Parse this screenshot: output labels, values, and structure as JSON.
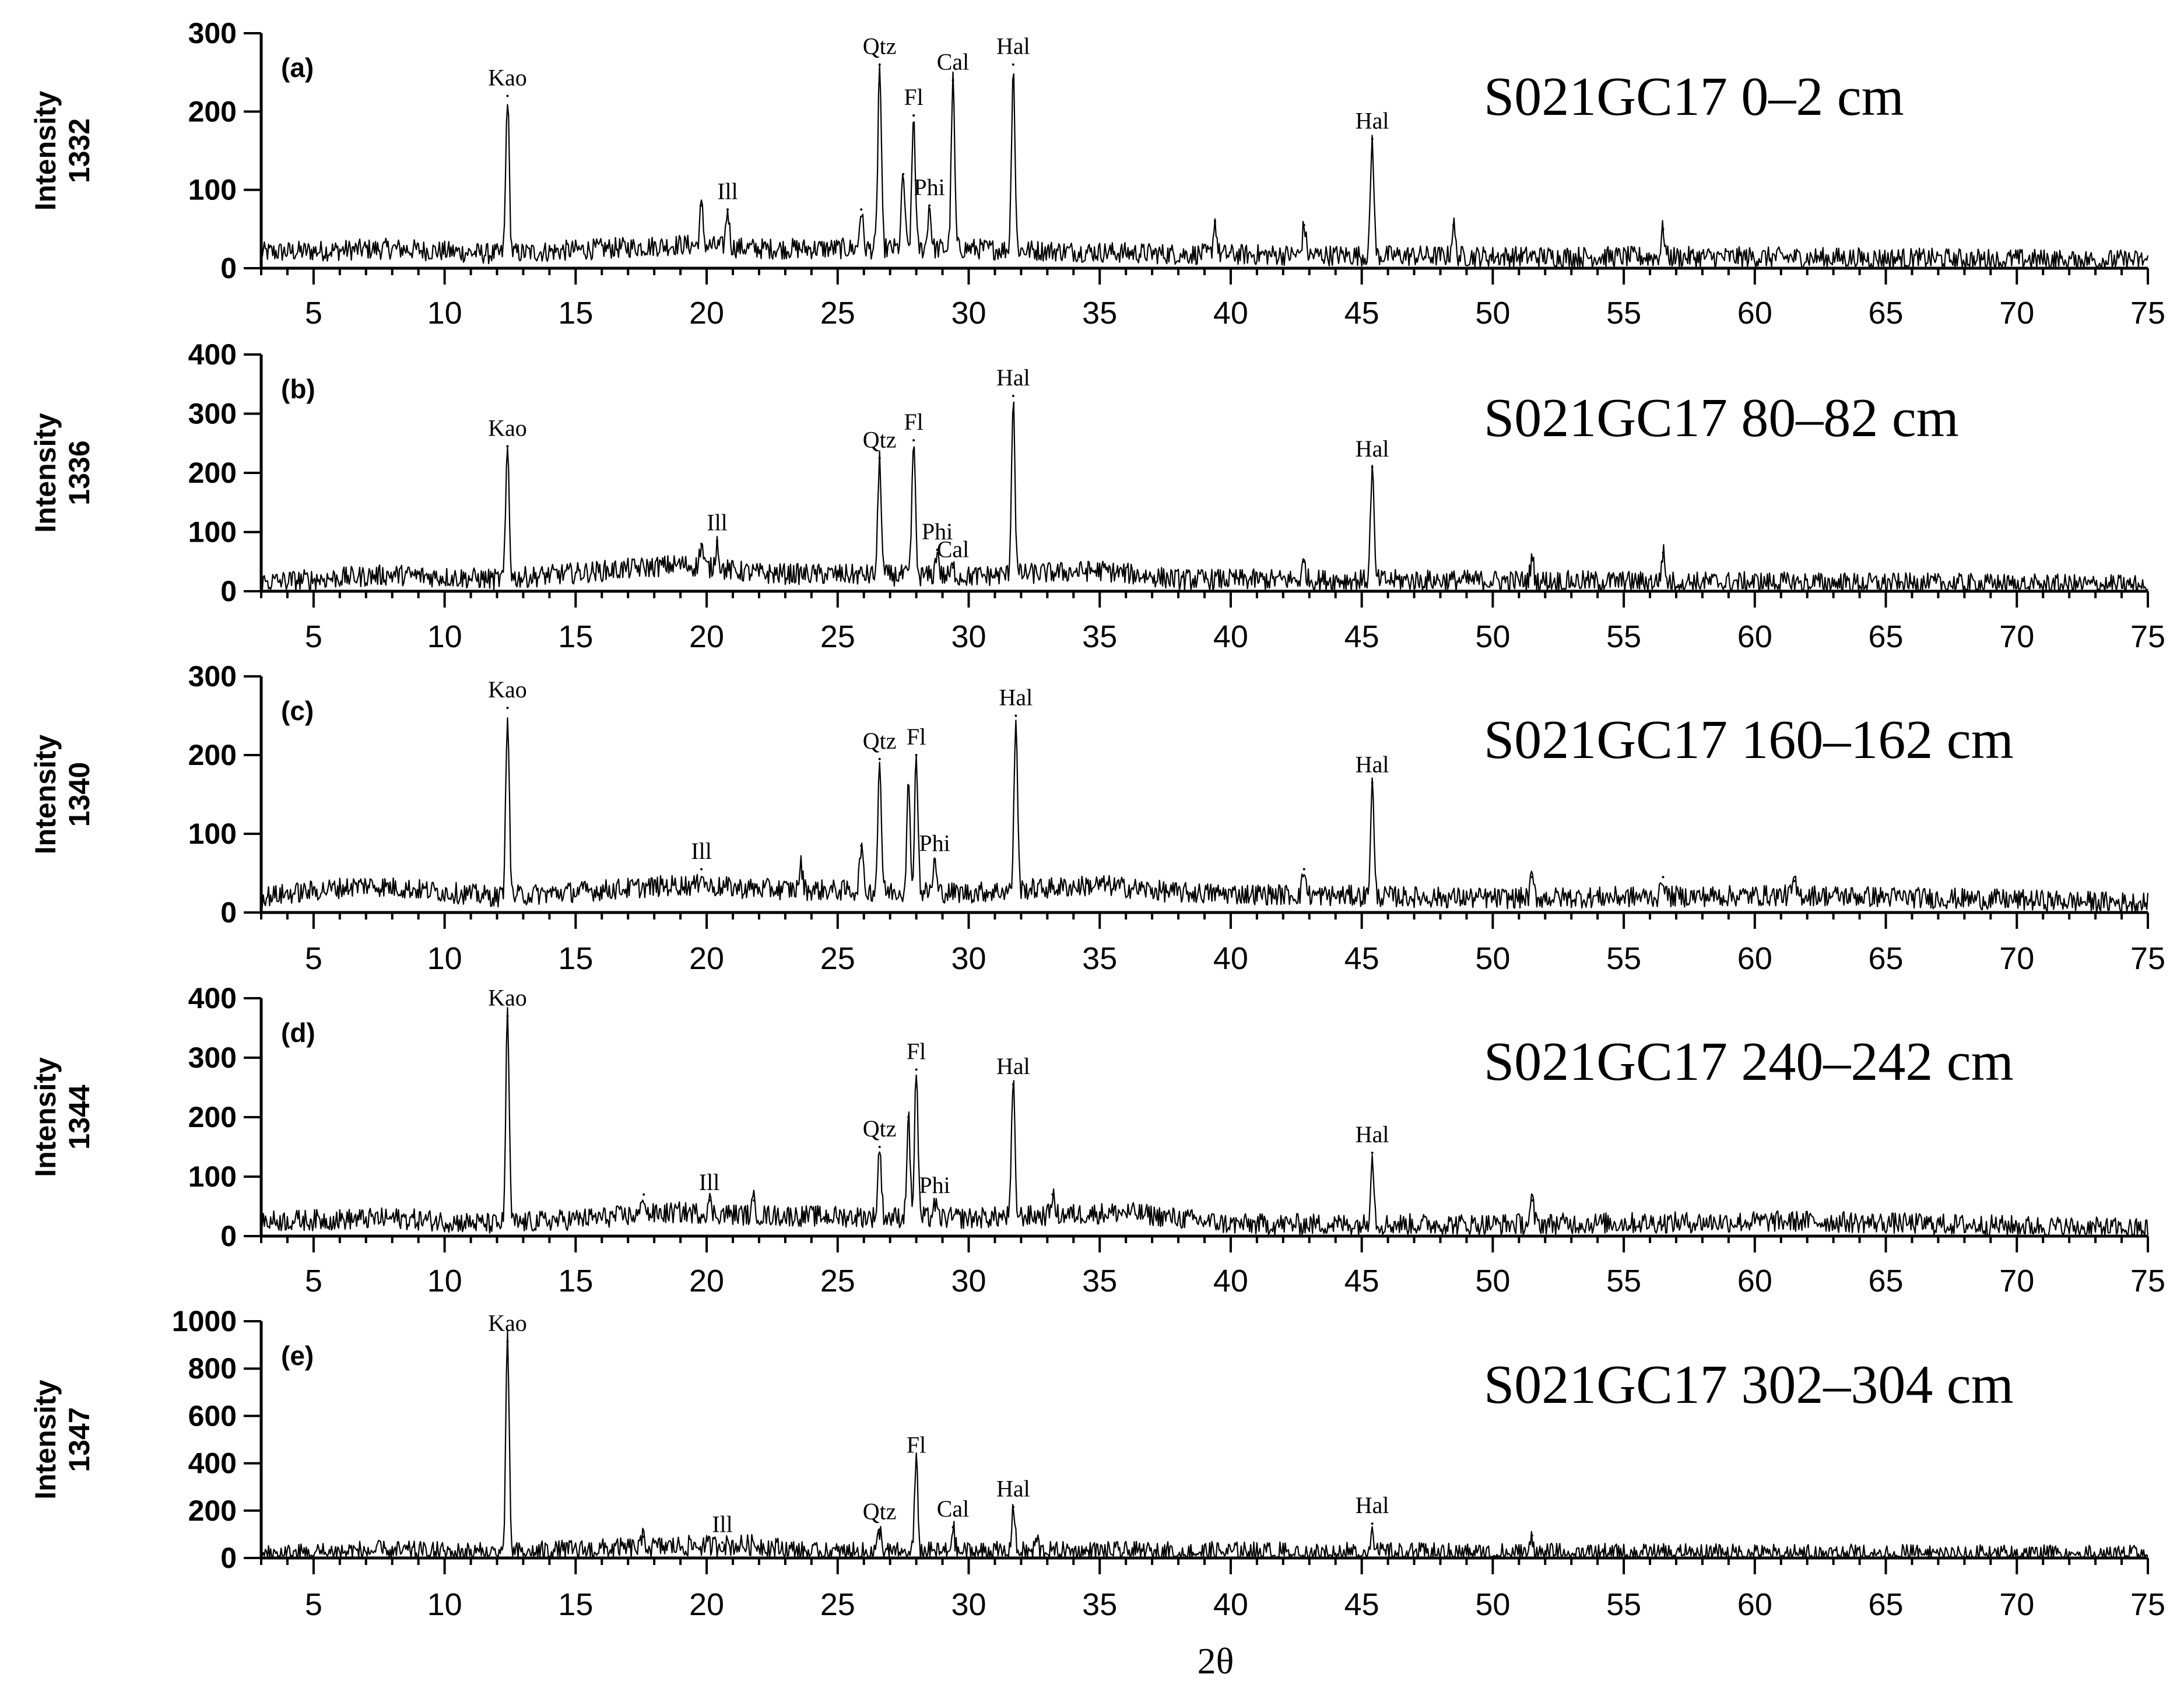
{
  "figure": {
    "x_axis_label": "2θ"
  },
  "chart_data": [
    {
      "type": "line",
      "panel_label": "(a)",
      "sample": "S021GC17   0–2 cm",
      "ylabel": [
        "Intensity",
        "1332"
      ],
      "xlim": [
        3,
        75
      ],
      "ylim": [
        0,
        300
      ],
      "yticks": [
        0,
        100,
        200,
        300
      ],
      "xticks": [
        5,
        10,
        15,
        20,
        25,
        30,
        35,
        40,
        45,
        50,
        55,
        60,
        65,
        70,
        75
      ],
      "baseline": [
        [
          3,
          20
        ],
        [
          8,
          25
        ],
        [
          12,
          18
        ],
        [
          19,
          30
        ],
        [
          22,
          25
        ],
        [
          30,
          25
        ],
        [
          38,
          18
        ],
        [
          50,
          15
        ],
        [
          60,
          14
        ],
        [
          75,
          10
        ]
      ],
      "peaks": [
        {
          "x": 12.4,
          "y": 220,
          "label": "Kao"
        },
        {
          "x": 19.8,
          "y": 80,
          "label": ""
        },
        {
          "x": 20.8,
          "y": 75,
          "label": "Ill"
        },
        {
          "x": 25.9,
          "y": 75,
          "label": ""
        },
        {
          "x": 26.6,
          "y": 260,
          "label": "Qtz"
        },
        {
          "x": 27.5,
          "y": 120,
          "label": ""
        },
        {
          "x": 27.9,
          "y": 195,
          "label": "Fl"
        },
        {
          "x": 28.5,
          "y": 80,
          "label": "Phi"
        },
        {
          "x": 29.4,
          "y": 240,
          "label": "Cal"
        },
        {
          "x": 31.7,
          "y": 260,
          "label": "Hal"
        },
        {
          "x": 39.4,
          "y": 60,
          "label": ""
        },
        {
          "x": 42.8,
          "y": 55,
          "label": ""
        },
        {
          "x": 45.4,
          "y": 165,
          "label": "Hal"
        },
        {
          "x": 48.5,
          "y": 55,
          "label": ""
        },
        {
          "x": 56.5,
          "y": 50,
          "label": ""
        }
      ]
    },
    {
      "type": "line",
      "panel_label": "(b)",
      "sample": "S021GC17   80–82 cm",
      "ylabel": [
        "Intensity",
        "1336"
      ],
      "xlim": [
        3,
        75
      ],
      "ylim": [
        0,
        400
      ],
      "yticks": [
        0,
        100,
        200,
        300,
        400
      ],
      "xticks": [
        5,
        10,
        15,
        20,
        25,
        30,
        35,
        40,
        45,
        50,
        55,
        60,
        65,
        70,
        75
      ],
      "baseline": [
        [
          3,
          15
        ],
        [
          8,
          28
        ],
        [
          12,
          20
        ],
        [
          19,
          45
        ],
        [
          22,
          30
        ],
        [
          30,
          25
        ],
        [
          35,
          35
        ],
        [
          38,
          20
        ],
        [
          50,
          18
        ],
        [
          60,
          15
        ],
        [
          75,
          10
        ]
      ],
      "peaks": [
        {
          "x": 12.4,
          "y": 245,
          "label": "Kao"
        },
        {
          "x": 19.8,
          "y": 80,
          "label": ""
        },
        {
          "x": 20.4,
          "y": 85,
          "label": "Ill"
        },
        {
          "x": 26.6,
          "y": 225,
          "label": "Qtz"
        },
        {
          "x": 27.9,
          "y": 255,
          "label": "Fl"
        },
        {
          "x": 28.8,
          "y": 70,
          "label": "Phi"
        },
        {
          "x": 29.4,
          "y": 40,
          "label": "Cal"
        },
        {
          "x": 31.7,
          "y": 330,
          "label": "Hal"
        },
        {
          "x": 42.8,
          "y": 50,
          "label": ""
        },
        {
          "x": 45.4,
          "y": 210,
          "label": "Hal"
        },
        {
          "x": 51.5,
          "y": 55,
          "label": ""
        },
        {
          "x": 56.5,
          "y": 65,
          "label": ""
        }
      ]
    },
    {
      "type": "line",
      "panel_label": "(c)",
      "sample": "S021GC17   160–162 cm",
      "ylabel": [
        "Intensity",
        "1340"
      ],
      "xlim": [
        3,
        75
      ],
      "ylim": [
        0,
        300
      ],
      "yticks": [
        0,
        100,
        200,
        300
      ],
      "xticks": [
        5,
        10,
        15,
        20,
        25,
        30,
        35,
        40,
        45,
        50,
        55,
        60,
        65,
        70,
        75
      ],
      "baseline": [
        [
          3,
          20
        ],
        [
          7,
          35
        ],
        [
          12,
          20
        ],
        [
          19,
          35
        ],
        [
          22,
          30
        ],
        [
          30,
          25
        ],
        [
          35,
          35
        ],
        [
          38,
          25
        ],
        [
          50,
          18
        ],
        [
          62,
          22
        ],
        [
          75,
          12
        ]
      ],
      "peaks": [
        {
          "x": 12.4,
          "y": 260,
          "label": "Kao"
        },
        {
          "x": 19.8,
          "y": 55,
          "label": "Ill"
        },
        {
          "x": 23.6,
          "y": 60,
          "label": ""
        },
        {
          "x": 25.9,
          "y": 85,
          "label": ""
        },
        {
          "x": 26.6,
          "y": 195,
          "label": "Qtz"
        },
        {
          "x": 27.7,
          "y": 160,
          "label": ""
        },
        {
          "x": 28.0,
          "y": 200,
          "label": "Fl"
        },
        {
          "x": 28.7,
          "y": 65,
          "label": "Phi"
        },
        {
          "x": 31.8,
          "y": 250,
          "label": "Hal"
        },
        {
          "x": 42.8,
          "y": 55,
          "label": ""
        },
        {
          "x": 45.4,
          "y": 165,
          "label": "Hal"
        },
        {
          "x": 51.5,
          "y": 45,
          "label": ""
        },
        {
          "x": 56.5,
          "y": 45,
          "label": ""
        },
        {
          "x": 61.5,
          "y": 40,
          "label": ""
        }
      ]
    },
    {
      "type": "line",
      "panel_label": "(d)",
      "sample": "S021GC17   240–242 cm",
      "ylabel": [
        "Intensity",
        "1344"
      ],
      "xlim": [
        3,
        75
      ],
      "ylim": [
        0,
        400
      ],
      "yticks": [
        0,
        100,
        200,
        300,
        400
      ],
      "xticks": [
        5,
        10,
        15,
        20,
        25,
        30,
        35,
        40,
        45,
        50,
        55,
        60,
        65,
        70,
        75
      ],
      "baseline": [
        [
          3,
          25
        ],
        [
          8,
          30
        ],
        [
          12,
          20
        ],
        [
          19,
          40
        ],
        [
          22,
          35
        ],
        [
          30,
          30
        ],
        [
          36,
          40
        ],
        [
          40,
          20
        ],
        [
          50,
          20
        ],
        [
          62,
          25
        ],
        [
          75,
          12
        ]
      ],
      "peaks": [
        {
          "x": 12.4,
          "y": 370,
          "label": "Kao"
        },
        {
          "x": 17.6,
          "y": 70,
          "label": ""
        },
        {
          "x": 20.1,
          "y": 60,
          "label": "Ill"
        },
        {
          "x": 21.8,
          "y": 60,
          "label": ""
        },
        {
          "x": 26.6,
          "y": 150,
          "label": "Qtz"
        },
        {
          "x": 27.7,
          "y": 200,
          "label": ""
        },
        {
          "x": 28.0,
          "y": 280,
          "label": "Fl"
        },
        {
          "x": 28.7,
          "y": 55,
          "label": "Phi"
        },
        {
          "x": 31.7,
          "y": 255,
          "label": "Hal"
        },
        {
          "x": 33.2,
          "y": 70,
          "label": ""
        },
        {
          "x": 45.4,
          "y": 140,
          "label": "Hal"
        },
        {
          "x": 51.5,
          "y": 60,
          "label": ""
        }
      ]
    },
    {
      "type": "line",
      "panel_label": "(e)",
      "sample": "S021GC17   302–304 cm",
      "ylabel": [
        "Intensity",
        "1347"
      ],
      "xlim": [
        3,
        75
      ],
      "ylim": [
        0,
        1000
      ],
      "yticks": [
        0,
        200,
        400,
        600,
        800,
        1000
      ],
      "xticks": [
        5,
        10,
        15,
        20,
        25,
        30,
        35,
        40,
        45,
        50,
        55,
        60,
        65,
        70,
        75
      ],
      "baseline": [
        [
          3,
          10
        ],
        [
          7,
          30
        ],
        [
          12,
          20
        ],
        [
          19,
          50
        ],
        [
          22,
          55
        ],
        [
          24,
          20
        ],
        [
          30,
          25
        ],
        [
          35,
          25
        ],
        [
          40,
          25
        ],
        [
          50,
          18
        ],
        [
          75,
          10
        ]
      ],
      "peaks": [
        {
          "x": 12.4,
          "y": 915,
          "label": "Kao"
        },
        {
          "x": 17.6,
          "y": 90,
          "label": ""
        },
        {
          "x": 20.6,
          "y": 65,
          "label": "Ill"
        },
        {
          "x": 26.6,
          "y": 120,
          "label": "Qtz"
        },
        {
          "x": 28.0,
          "y": 400,
          "label": "Fl"
        },
        {
          "x": 29.4,
          "y": 130,
          "label": "Cal"
        },
        {
          "x": 31.7,
          "y": 215,
          "label": "Hal"
        },
        {
          "x": 32.6,
          "y": 80,
          "label": ""
        },
        {
          "x": 45.4,
          "y": 145,
          "label": "Hal"
        },
        {
          "x": 51.5,
          "y": 95,
          "label": ""
        }
      ]
    }
  ]
}
